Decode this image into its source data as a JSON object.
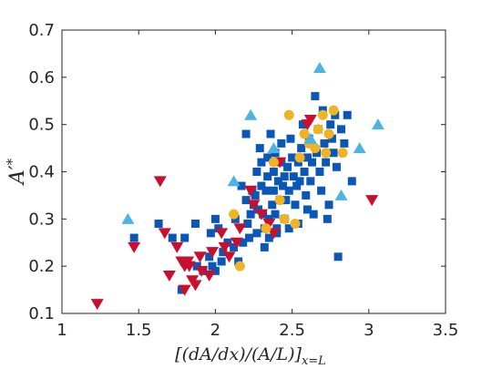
{
  "chart_data": {
    "type": "scatter",
    "title": "",
    "xlabel": "[(dA/dx)/(A/L)]x=L",
    "ylabel": "A′*",
    "xlim": [
      1,
      3.5
    ],
    "ylim": [
      0.1,
      0.7
    ],
    "xticks": [
      "1",
      "1.5",
      "2",
      "2.5",
      "3",
      "3.5"
    ],
    "yticks": [
      "0.1",
      "0.2",
      "0.3",
      "0.4",
      "0.5",
      "0.6",
      "0.7"
    ],
    "grid": false,
    "legend": "none",
    "series": [
      {
        "marker": "square",
        "color": "#0b57b8",
        "points": [
          [
            1.47,
            0.26
          ],
          [
            1.63,
            0.29
          ],
          [
            1.72,
            0.26
          ],
          [
            1.8,
            0.26
          ],
          [
            1.78,
            0.15
          ],
          [
            1.87,
            0.29
          ],
          [
            1.88,
            0.2
          ],
          [
            1.92,
            0.19
          ],
          [
            1.96,
            0.22
          ],
          [
            1.97,
            0.27
          ],
          [
            1.98,
            0.2
          ],
          [
            2.0,
            0.3
          ],
          [
            2.0,
            0.19
          ],
          [
            2.02,
            0.28
          ],
          [
            2.04,
            0.21
          ],
          [
            2.05,
            0.23
          ],
          [
            2.08,
            0.25
          ],
          [
            2.12,
            0.24
          ],
          [
            2.13,
            0.3
          ],
          [
            2.15,
            0.21
          ],
          [
            2.17,
            0.37
          ],
          [
            2.18,
            0.25
          ],
          [
            2.2,
            0.48
          ],
          [
            2.2,
            0.34
          ],
          [
            2.21,
            0.29
          ],
          [
            2.22,
            0.26
          ],
          [
            2.23,
            0.31
          ],
          [
            2.24,
            0.36
          ],
          [
            2.25,
            0.33
          ],
          [
            2.26,
            0.35
          ],
          [
            2.27,
            0.4
          ],
          [
            2.27,
            0.27
          ],
          [
            2.28,
            0.32
          ],
          [
            2.29,
            0.45
          ],
          [
            2.3,
            0.42
          ],
          [
            2.3,
            0.37
          ],
          [
            2.31,
            0.31
          ],
          [
            2.32,
            0.28
          ],
          [
            2.32,
            0.24
          ],
          [
            2.33,
            0.36
          ],
          [
            2.34,
            0.43
          ],
          [
            2.34,
            0.39
          ],
          [
            2.35,
            0.3
          ],
          [
            2.35,
            0.26
          ],
          [
            2.36,
            0.48
          ],
          [
            2.37,
            0.33
          ],
          [
            2.38,
            0.4
          ],
          [
            2.38,
            0.36
          ],
          [
            2.39,
            0.44
          ],
          [
            2.39,
            0.31
          ],
          [
            2.4,
            0.28
          ],
          [
            2.4,
            0.27
          ],
          [
            2.41,
            0.38
          ],
          [
            2.42,
            0.34
          ],
          [
            2.43,
            0.46
          ],
          [
            2.43,
            0.42
          ],
          [
            2.44,
            0.37
          ],
          [
            2.45,
            0.39
          ],
          [
            2.45,
            0.3
          ],
          [
            2.46,
            0.34
          ],
          [
            2.47,
            0.41
          ],
          [
            2.48,
            0.36
          ],
          [
            2.48,
            0.28
          ],
          [
            2.49,
            0.47
          ],
          [
            2.5,
            0.43
          ],
          [
            2.51,
            0.39
          ],
          [
            2.52,
            0.33
          ],
          [
            2.53,
            0.37
          ],
          [
            2.54,
            0.42
          ],
          [
            2.54,
            0.29
          ],
          [
            2.55,
            0.38
          ],
          [
            2.56,
            0.45
          ],
          [
            2.57,
            0.5
          ],
          [
            2.58,
            0.4
          ],
          [
            2.59,
            0.35
          ],
          [
            2.6,
            0.43
          ],
          [
            2.6,
            0.32
          ],
          [
            2.61,
            0.47
          ],
          [
            2.62,
            0.38
          ],
          [
            2.63,
            0.42
          ],
          [
            2.64,
            0.31
          ],
          [
            2.65,
            0.56
          ],
          [
            2.66,
            0.44
          ],
          [
            2.67,
            0.49
          ],
          [
            2.68,
            0.4
          ],
          [
            2.69,
            0.36
          ],
          [
            2.7,
            0.53
          ],
          [
            2.71,
            0.46
          ],
          [
            2.72,
            0.42
          ],
          [
            2.73,
            0.3
          ],
          [
            2.74,
            0.33
          ],
          [
            2.75,
            0.5
          ],
          [
            2.76,
            0.47
          ],
          [
            2.77,
            0.44
          ],
          [
            2.78,
            0.52
          ],
          [
            2.79,
            0.41
          ],
          [
            2.8,
            0.22
          ],
          [
            2.82,
            0.49
          ],
          [
            2.84,
            0.46
          ],
          [
            2.86,
            0.52
          ],
          [
            2.89,
            0.38
          ]
        ]
      },
      {
        "marker": "triangle-down",
        "color": "#c8102e",
        "points": [
          [
            1.23,
            0.12
          ],
          [
            1.47,
            0.24
          ],
          [
            1.64,
            0.38
          ],
          [
            1.67,
            0.27
          ],
          [
            1.7,
            0.18
          ],
          [
            1.75,
            0.24
          ],
          [
            1.78,
            0.21
          ],
          [
            1.8,
            0.2
          ],
          [
            1.8,
            0.15
          ],
          [
            1.82,
            0.21
          ],
          [
            1.83,
            0.2
          ],
          [
            1.85,
            0.17
          ],
          [
            1.87,
            0.16
          ],
          [
            1.9,
            0.22
          ],
          [
            1.91,
            0.19
          ],
          [
            1.96,
            0.18
          ],
          [
            1.98,
            0.23
          ],
          [
            2.04,
            0.27
          ],
          [
            2.06,
            0.24
          ],
          [
            2.09,
            0.22
          ],
          [
            2.14,
            0.25
          ],
          [
            2.16,
            0.28
          ],
          [
            2.23,
            0.36
          ],
          [
            2.25,
            0.33
          ],
          [
            2.3,
            0.31
          ],
          [
            2.35,
            0.29
          ],
          [
            2.38,
            0.27
          ],
          [
            2.42,
            0.42
          ],
          [
            2.6,
            0.5
          ],
          [
            2.62,
            0.51
          ],
          [
            3.02,
            0.34
          ]
        ]
      },
      {
        "marker": "circle",
        "color": "#f0b323",
        "points": [
          [
            2.12,
            0.31
          ],
          [
            2.16,
            0.2
          ],
          [
            2.33,
            0.28
          ],
          [
            2.38,
            0.42
          ],
          [
            2.42,
            0.34
          ],
          [
            2.45,
            0.3
          ],
          [
            2.48,
            0.52
          ],
          [
            2.52,
            0.29
          ],
          [
            2.55,
            0.43
          ],
          [
            2.58,
            0.48
          ],
          [
            2.61,
            0.46
          ],
          [
            2.65,
            0.45
          ],
          [
            2.67,
            0.49
          ],
          [
            2.7,
            0.52
          ],
          [
            2.72,
            0.44
          ],
          [
            2.74,
            0.48
          ],
          [
            2.77,
            0.53
          ],
          [
            2.83,
            0.44
          ]
        ]
      },
      {
        "marker": "triangle-up",
        "color": "#4db3e6",
        "points": [
          [
            1.43,
            0.3
          ],
          [
            2.12,
            0.38
          ],
          [
            2.23,
            0.52
          ],
          [
            2.38,
            0.45
          ],
          [
            2.62,
            0.47
          ],
          [
            2.68,
            0.62
          ],
          [
            2.82,
            0.35
          ],
          [
            2.94,
            0.45
          ],
          [
            3.06,
            0.5
          ]
        ]
      }
    ]
  }
}
